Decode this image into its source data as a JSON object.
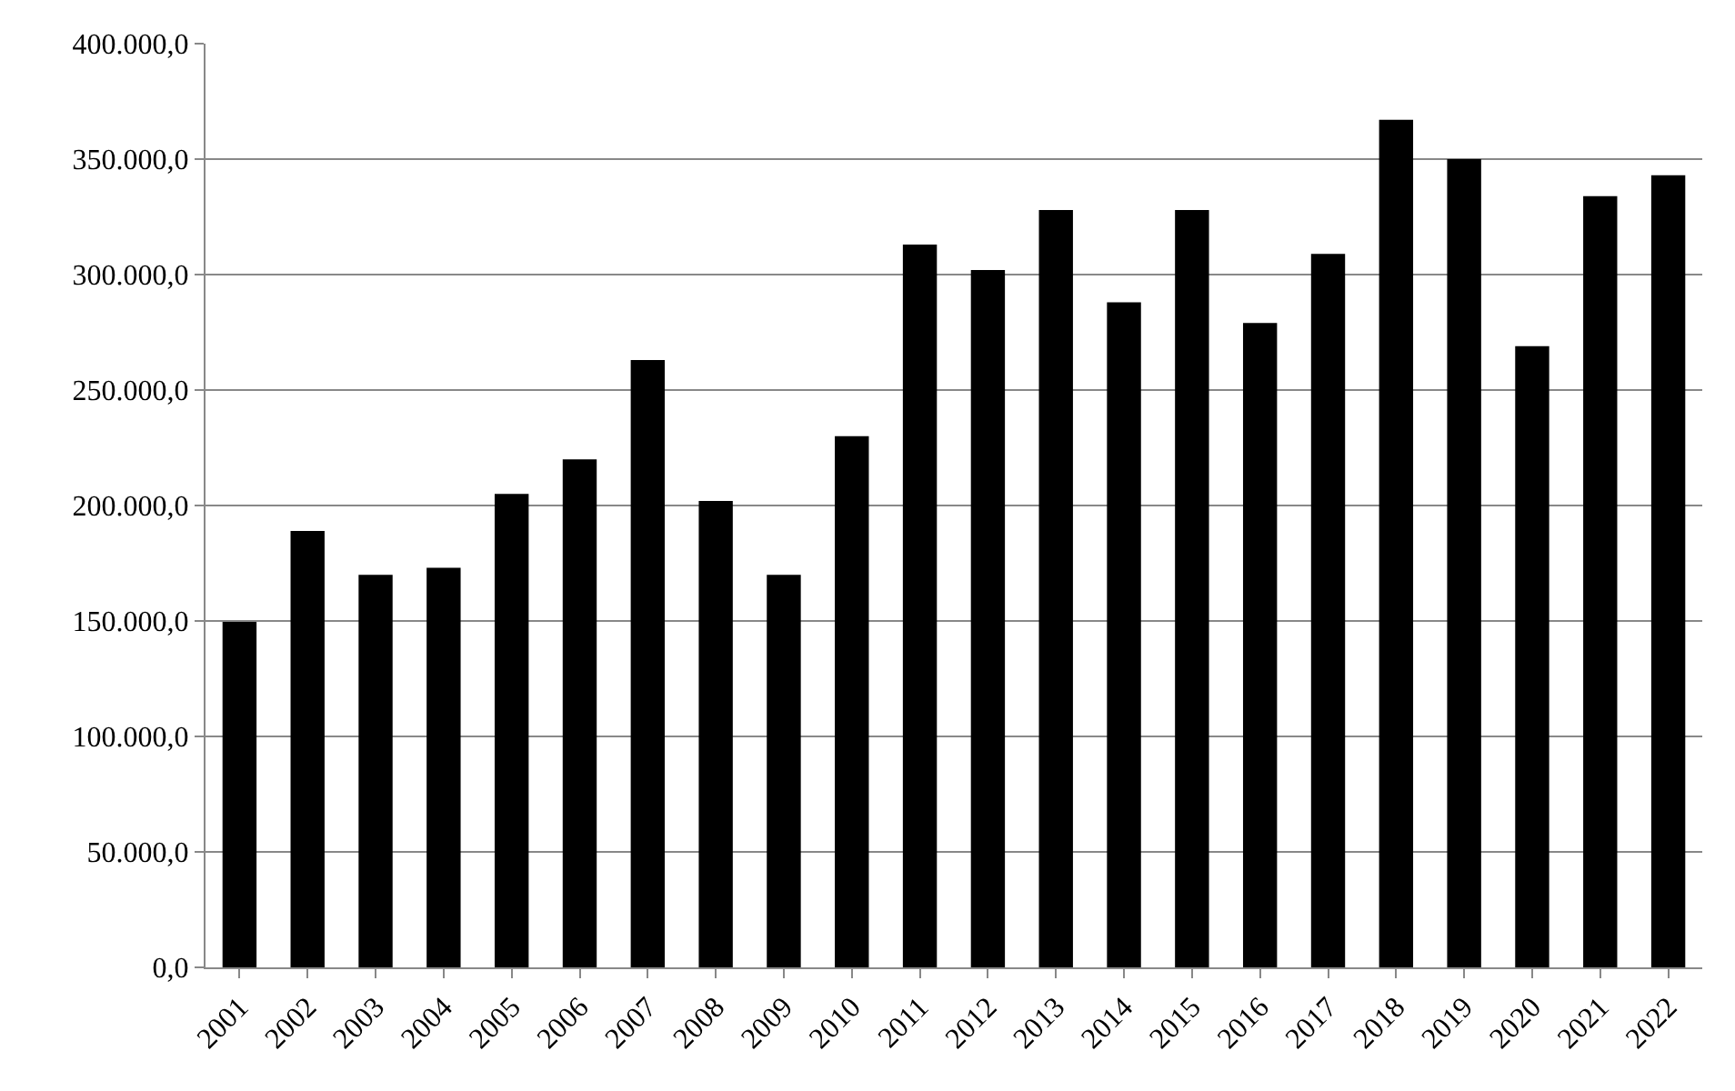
{
  "chart_data": {
    "type": "bar",
    "categories": [
      "2001",
      "2002",
      "2003",
      "2004",
      "2005",
      "2006",
      "2007",
      "2008",
      "2009",
      "2010",
      "2011",
      "2012",
      "2013",
      "2014",
      "2015",
      "2016",
      "2017",
      "2018",
      "2019",
      "2020",
      "2021",
      "2022"
    ],
    "values": [
      149600,
      189000,
      170000,
      173000,
      205000,
      220000,
      263000,
      202000,
      170000,
      230000,
      313000,
      302000,
      328000,
      288000,
      328000,
      279000,
      309000,
      367000,
      350000,
      269000,
      334000,
      343000
    ],
    "color": "#000000",
    "ylim": [
      0,
      400000
    ],
    "yticks": [
      {
        "value": 0,
        "label": "0,0"
      },
      {
        "value": 50000,
        "label": "50.000,0"
      },
      {
        "value": 100000,
        "label": "100.000,0"
      },
      {
        "value": 150000,
        "label": "150.000,0"
      },
      {
        "value": 200000,
        "label": "200.000,0"
      },
      {
        "value": 250000,
        "label": "250.000,0"
      },
      {
        "value": 300000,
        "label": "300.000,0"
      },
      {
        "value": 350000,
        "label": "350.000,0"
      },
      {
        "value": 400000,
        "label": "400.000,0"
      }
    ],
    "grid": "y"
  }
}
